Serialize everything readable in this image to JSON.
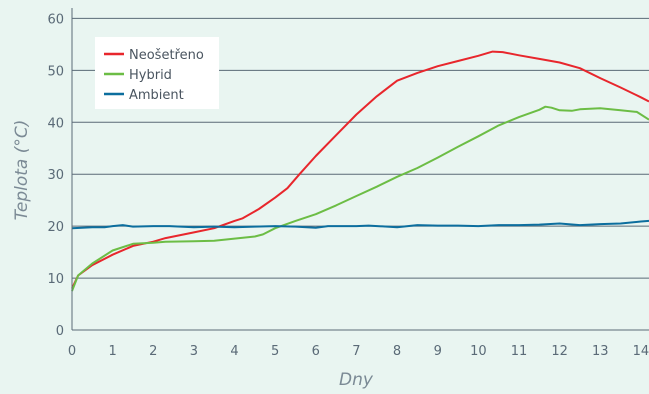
{
  "chart_data": {
    "type": "line",
    "xlabel": "Dny",
    "ylabel": "Teplota (°C)",
    "xlim": [
      0,
      14.2
    ],
    "ylim": [
      0,
      62
    ],
    "x_ticks": [
      0,
      1,
      2,
      3,
      4,
      5,
      6,
      7,
      8,
      9,
      10,
      11,
      12,
      13,
      14
    ],
    "y_ticks": [
      0,
      10,
      20,
      30,
      40,
      50,
      60
    ],
    "grid": "horizontal",
    "legend_position": "top-left",
    "series": [
      {
        "name": "Neošetřeno",
        "color": "#e8262c",
        "points": [
          [
            0,
            8
          ],
          [
            0.15,
            10.5
          ],
          [
            0.5,
            12.5
          ],
          [
            1,
            14.5
          ],
          [
            1.5,
            16.2
          ],
          [
            2,
            17
          ],
          [
            2.3,
            17.7
          ],
          [
            3,
            18.8
          ],
          [
            3.5,
            19.6
          ],
          [
            4,
            21
          ],
          [
            4.2,
            21.5
          ],
          [
            4.6,
            23.3
          ],
          [
            5,
            25.5
          ],
          [
            5.3,
            27.3
          ],
          [
            5.6,
            30
          ],
          [
            6,
            33.5
          ],
          [
            6.5,
            37.5
          ],
          [
            7,
            41.5
          ],
          [
            7.5,
            45
          ],
          [
            8,
            48
          ],
          [
            8.5,
            49.5
          ],
          [
            9,
            50.8
          ],
          [
            9.5,
            51.8
          ],
          [
            10,
            52.8
          ],
          [
            10.35,
            53.6
          ],
          [
            10.6,
            53.5
          ],
          [
            11,
            52.9
          ],
          [
            11.5,
            52.2
          ],
          [
            12,
            51.5
          ],
          [
            12.5,
            50.4
          ],
          [
            13,
            48.5
          ],
          [
            13.5,
            46.7
          ],
          [
            14,
            44.8
          ],
          [
            14.2,
            44
          ]
        ]
      },
      {
        "name": "Hybrid",
        "color": "#6cbd45",
        "points": [
          [
            0,
            7.5
          ],
          [
            0.15,
            10.5
          ],
          [
            0.5,
            12.8
          ],
          [
            1,
            15.3
          ],
          [
            1.5,
            16.6
          ],
          [
            2,
            16.8
          ],
          [
            2.3,
            17
          ],
          [
            3,
            17.1
          ],
          [
            3.5,
            17.2
          ],
          [
            4,
            17.6
          ],
          [
            4.5,
            18
          ],
          [
            4.7,
            18.4
          ],
          [
            5,
            19.6
          ],
          [
            5.5,
            21
          ],
          [
            6,
            22.3
          ],
          [
            6.5,
            24
          ],
          [
            7,
            25.8
          ],
          [
            7.5,
            27.6
          ],
          [
            8,
            29.5
          ],
          [
            8.5,
            31.2
          ],
          [
            9,
            33.2
          ],
          [
            9.5,
            35.3
          ],
          [
            10,
            37.3
          ],
          [
            10.5,
            39.4
          ],
          [
            11,
            41
          ],
          [
            11.5,
            42.4
          ],
          [
            11.65,
            43
          ],
          [
            11.8,
            42.8
          ],
          [
            12,
            42.3
          ],
          [
            12.3,
            42.2
          ],
          [
            12.5,
            42.5
          ],
          [
            13,
            42.7
          ],
          [
            13.5,
            42.3
          ],
          [
            13.9,
            42
          ],
          [
            14.2,
            40.5
          ]
        ]
      },
      {
        "name": "Ambient",
        "color": "#0c6e9e",
        "points": [
          [
            0,
            19.6
          ],
          [
            0.5,
            19.8
          ],
          [
            0.8,
            19.8
          ],
          [
            1,
            20
          ],
          [
            1.25,
            20.2
          ],
          [
            1.5,
            19.9
          ],
          [
            2,
            20
          ],
          [
            2.4,
            20
          ],
          [
            3,
            19.8
          ],
          [
            3.5,
            19.9
          ],
          [
            4,
            19.8
          ],
          [
            4.5,
            19.9
          ],
          [
            5,
            20
          ],
          [
            5.5,
            19.9
          ],
          [
            6,
            19.7
          ],
          [
            6.3,
            20
          ],
          [
            7,
            20
          ],
          [
            7.3,
            20.1
          ],
          [
            8,
            19.8
          ],
          [
            8.5,
            20.2
          ],
          [
            9,
            20.1
          ],
          [
            9.5,
            20.1
          ],
          [
            10,
            20
          ],
          [
            10.5,
            20.2
          ],
          [
            11,
            20.2
          ],
          [
            11.5,
            20.3
          ],
          [
            12,
            20.5
          ],
          [
            12.5,
            20.2
          ],
          [
            13,
            20.4
          ],
          [
            13.5,
            20.5
          ],
          [
            14,
            20.9
          ],
          [
            14.2,
            21
          ]
        ]
      }
    ]
  }
}
